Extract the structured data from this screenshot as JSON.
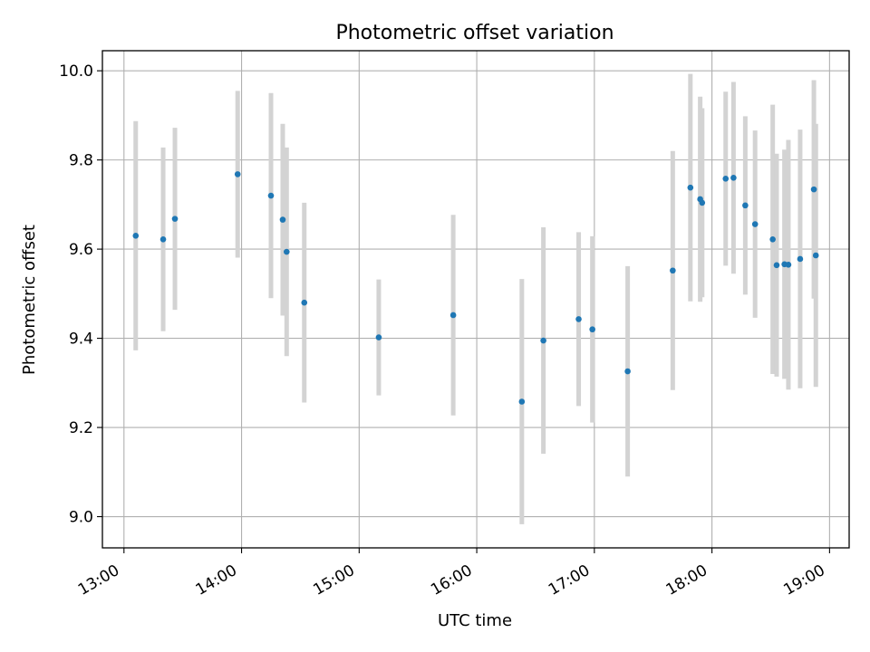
{
  "chart_data": {
    "type": "scatter",
    "title": "Photometric offset variation",
    "xlabel": "UTC time",
    "ylabel": "Photometric offset",
    "x_ticks": [
      "13:00",
      "14:00",
      "15:00",
      "16:00",
      "17:00",
      "18:00",
      "19:00"
    ],
    "y_ticks": [
      "9.0",
      "9.2",
      "9.4",
      "9.6",
      "9.8",
      "10.0"
    ],
    "xlim": [
      "12:49",
      "19:10"
    ],
    "ylim": [
      8.93,
      10.045
    ],
    "grid": true,
    "series": [
      {
        "marker_color": "#1f77b4",
        "errorbar_color": "#d3d3d3",
        "x": [
          "13:06",
          "13:20",
          "13:26",
          "13:58",
          "14:15",
          "14:21",
          "14:23",
          "14:32",
          "15:10",
          "15:48",
          "16:23",
          "16:34",
          "16:52",
          "16:59",
          "17:17",
          "17:40",
          "17:49",
          "17:54",
          "17:55",
          "18:07",
          "18:11",
          "18:17",
          "18:22",
          "18:31",
          "18:33",
          "18:37",
          "18:39",
          "18:45",
          "18:52",
          "18:53"
        ],
        "y": [
          9.63,
          9.622,
          9.668,
          9.768,
          9.72,
          9.666,
          9.594,
          9.48,
          9.402,
          9.452,
          9.258,
          9.395,
          9.443,
          9.42,
          9.326,
          9.552,
          9.738,
          9.712,
          9.704,
          9.758,
          9.76,
          9.698,
          9.656,
          9.622,
          9.564,
          9.566,
          9.565,
          9.578,
          9.734,
          9.586
        ],
        "yerr": [
          0.257,
          0.206,
          0.204,
          0.187,
          0.23,
          0.215,
          0.234,
          0.224,
          0.13,
          0.225,
          0.275,
          0.254,
          0.195,
          0.209,
          0.236,
          0.268,
          0.255,
          0.23,
          0.212,
          0.195,
          0.215,
          0.2,
          0.21,
          0.302,
          0.25,
          0.257,
          0.28,
          0.29,
          0.245,
          0.295
        ]
      }
    ]
  }
}
